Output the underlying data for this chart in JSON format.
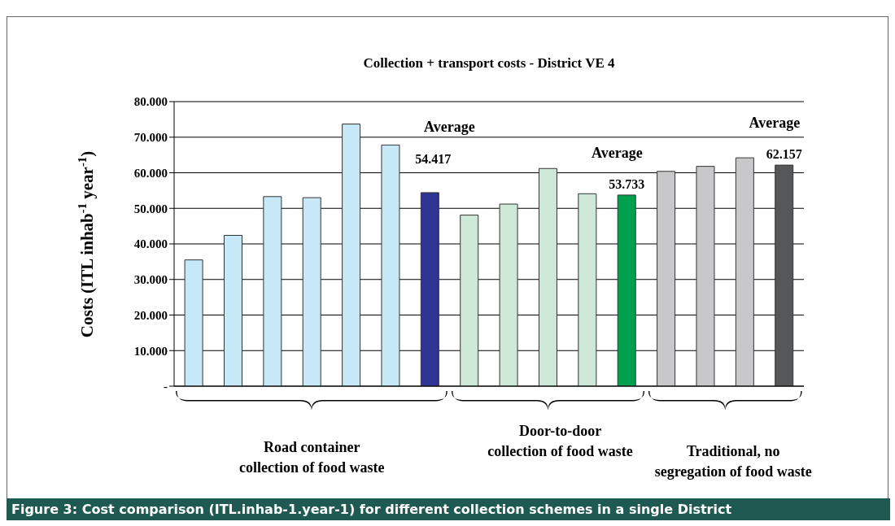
{
  "chart_data": {
    "type": "bar",
    "title": "Collection + transport costs - District VE 4",
    "ylabel": "Costs  (ITL  inhab$^{-1}$ year$^{-1}$)",
    "categories": [
      null,
      null,
      null,
      null,
      null,
      null,
      null,
      null,
      null,
      null,
      null,
      null,
      null,
      null,
      null,
      null
    ],
    "values": [
      35500,
      42400,
      53300,
      53000,
      73700,
      67800,
      54417,
      48100,
      51200,
      61200,
      54100,
      53733,
      60400,
      61800,
      64200,
      62157
    ],
    "value_labels": [
      null,
      null,
      null,
      null,
      null,
      null,
      "54.417",
      null,
      null,
      null,
      null,
      "53.733",
      null,
      null,
      null,
      "62.157"
    ],
    "colors": [
      "#c6e8f7",
      "#c6e8f7",
      "#c6e8f7",
      "#c6e8f7",
      "#c6e8f7",
      "#c6e8f7",
      "#2e3592",
      "#cde8d8",
      "#cde8d8",
      "#cde8d8",
      "#cde8d8",
      "#00a04f",
      "#c8c8ca",
      "#c8c8ca",
      "#c8c8ca",
      "#555758"
    ],
    "ylim": [
      0,
      80000
    ],
    "yticks": [
      {
        "value": 0,
        "label": "-"
      },
      {
        "value": 10000,
        "label": "10.000"
      },
      {
        "value": 20000,
        "label": "20.000"
      },
      {
        "value": 30000,
        "label": "30.000"
      },
      {
        "value": 40000,
        "label": "40.000"
      },
      {
        "value": 50000,
        "label": "50.000"
      },
      {
        "value": 60000,
        "label": "60.000"
      },
      {
        "value": 70000,
        "label": "70.000"
      },
      {
        "value": 80000,
        "label": "80.000"
      }
    ],
    "grid": "y",
    "annotations": [
      "Average",
      "Average",
      "Average",
      "Road container\ncollection of food waste",
      "Door-to-door\ncollection of food waste",
      "Traditional, no\nsegregation of food waste",
      "Figure 3: Cost comparison (ITL.inhab-1.year-1) for different collection schemes in a single District"
    ]
  }
}
